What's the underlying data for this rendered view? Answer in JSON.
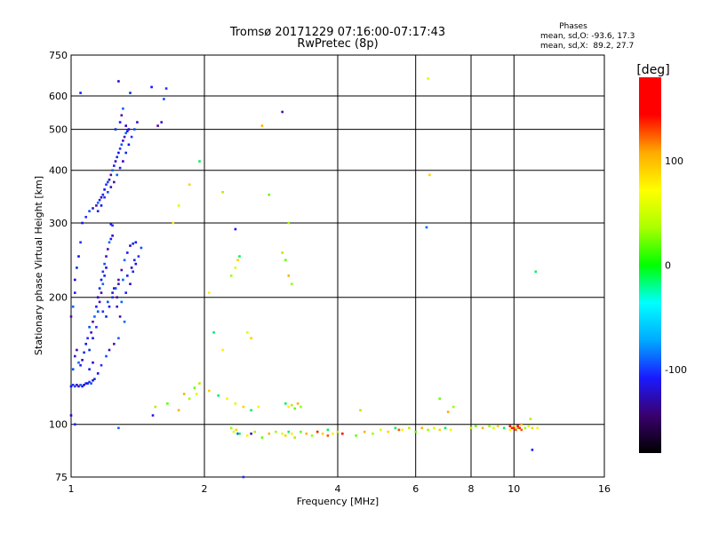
{
  "chart_data": {
    "type": "scatter",
    "title": "Tromsø 20171229 07:16:00-07:17:43",
    "subtitle": "RwPretec (8p)",
    "phases": {
      "heading": "Phases",
      "line_o": "mean, sd,O: -93.6, 17.3",
      "line_x": "mean, sd,X:  89.2, 27.7"
    },
    "xlabel": "Frequency [MHz]",
    "ylabel": "Stationary phase Virtual Height [km]",
    "xscale": "log",
    "yscale": "log",
    "xlim": [
      1,
      16
    ],
    "ylim": [
      75,
      750
    ],
    "xticks": [
      1,
      2,
      4,
      6,
      8,
      10,
      16
    ],
    "yticks": [
      75,
      100,
      200,
      300,
      400,
      500,
      600,
      750
    ],
    "x_gridlines": [
      2,
      4,
      6,
      8,
      10
    ],
    "y_gridlines": [
      100,
      200,
      300,
      400,
      500,
      600
    ],
    "colorbar": {
      "label": "[deg]",
      "range": [
        -180,
        180
      ],
      "ticks": [
        -100,
        0,
        100
      ],
      "colors": [
        "#000000",
        "#3a006e",
        "#1a1aff",
        "#00aaff",
        "#00ffff",
        "#00ff00",
        "#aaff00",
        "#ffff00",
        "#ffaa00",
        "#ff0000",
        "#ff0000"
      ]
    },
    "series": [
      {
        "points": [
          [
            1.0,
            123
          ],
          [
            1.01,
            124
          ],
          [
            1.02,
            123
          ],
          [
            1.03,
            124
          ],
          [
            1.04,
            123
          ],
          [
            1.05,
            124
          ],
          [
            1.06,
            123
          ],
          [
            1.07,
            124
          ],
          [
            1.08,
            125
          ],
          [
            1.09,
            125
          ],
          [
            1.1,
            126
          ],
          [
            1.11,
            125
          ],
          [
            1.12,
            127
          ],
          [
            1.0,
            180
          ],
          [
            1.01,
            190
          ],
          [
            1.02,
            205
          ],
          [
            1.02,
            220
          ],
          [
            1.03,
            235
          ],
          [
            1.04,
            250
          ],
          [
            1.05,
            270
          ],
          [
            1.01,
            135
          ],
          [
            1.02,
            145
          ],
          [
            1.03,
            150
          ],
          [
            1.04,
            140
          ],
          [
            1.05,
            138
          ],
          [
            1.06,
            142
          ],
          [
            1.07,
            148
          ],
          [
            1.08,
            155
          ],
          [
            1.09,
            160
          ],
          [
            1.1,
            170
          ],
          [
            1.11,
            165
          ],
          [
            1.12,
            175
          ],
          [
            1.13,
            180
          ],
          [
            1.14,
            190
          ],
          [
            1.15,
            200
          ],
          [
            1.16,
            210
          ],
          [
            1.17,
            220
          ],
          [
            1.18,
            230
          ],
          [
            1.19,
            240
          ],
          [
            1.2,
            250
          ],
          [
            1.21,
            260
          ],
          [
            1.22,
            270
          ],
          [
            1.23,
            275
          ],
          [
            1.24,
            280
          ],
          [
            1.1,
            150
          ],
          [
            1.12,
            160
          ],
          [
            1.14,
            170
          ],
          [
            1.15,
            185
          ],
          [
            1.16,
            195
          ],
          [
            1.17,
            205
          ],
          [
            1.18,
            215
          ],
          [
            1.19,
            225
          ],
          [
            1.2,
            235
          ],
          [
            1.2,
            180
          ],
          [
            1.22,
            190
          ],
          [
            1.24,
            200
          ],
          [
            1.26,
            210
          ],
          [
            1.28,
            220
          ],
          [
            1.3,
            232
          ],
          [
            1.32,
            245
          ],
          [
            1.34,
            255
          ],
          [
            1.36,
            265
          ],
          [
            1.38,
            268
          ],
          [
            1.4,
            270
          ],
          [
            1.18,
            185
          ],
          [
            1.21,
            195
          ],
          [
            1.24,
            205
          ],
          [
            1.27,
            200
          ],
          [
            1.3,
            195
          ],
          [
            1.33,
            205
          ],
          [
            1.36,
            215
          ],
          [
            1.38,
            230
          ],
          [
            1.4,
            240
          ],
          [
            1.42,
            250
          ],
          [
            1.44,
            262
          ],
          [
            1.25,
            210
          ],
          [
            1.28,
            215
          ],
          [
            1.31,
            220
          ],
          [
            1.34,
            225
          ],
          [
            1.37,
            235
          ],
          [
            1.39,
            245
          ],
          [
            1.06,
            300
          ],
          [
            1.08,
            310
          ],
          [
            1.1,
            320
          ],
          [
            1.12,
            325
          ],
          [
            1.14,
            330
          ],
          [
            1.15,
            335
          ],
          [
            1.16,
            340
          ],
          [
            1.17,
            345
          ],
          [
            1.18,
            350
          ],
          [
            1.19,
            360
          ],
          [
            1.2,
            370
          ],
          [
            1.21,
            375
          ],
          [
            1.22,
            380
          ],
          [
            1.23,
            390
          ],
          [
            1.24,
            400
          ],
          [
            1.25,
            410
          ],
          [
            1.26,
            420
          ],
          [
            1.27,
            430
          ],
          [
            1.28,
            440
          ],
          [
            1.29,
            450
          ],
          [
            1.3,
            460
          ],
          [
            1.31,
            470
          ],
          [
            1.32,
            480
          ],
          [
            1.33,
            490
          ],
          [
            1.34,
            495
          ],
          [
            1.35,
            500
          ],
          [
            1.15,
            320
          ],
          [
            1.17,
            330
          ],
          [
            1.19,
            345
          ],
          [
            1.21,
            355
          ],
          [
            1.23,
            365
          ],
          [
            1.25,
            375
          ],
          [
            1.27,
            390
          ],
          [
            1.29,
            405
          ],
          [
            1.31,
            420
          ],
          [
            1.33,
            440
          ],
          [
            1.35,
            460
          ],
          [
            1.37,
            480
          ],
          [
            1.39,
            500
          ],
          [
            1.41,
            520
          ],
          [
            1.3,
            540
          ],
          [
            1.31,
            560
          ],
          [
            1.29,
            520
          ],
          [
            1.33,
            510
          ],
          [
            1.26,
            500
          ],
          [
            1.23,
            298
          ],
          [
            1.24,
            296
          ],
          [
            1.26,
            210
          ],
          [
            1.27,
            190
          ],
          [
            1.29,
            180
          ],
          [
            1.32,
            175
          ],
          [
            1.1,
            135
          ],
          [
            1.12,
            140
          ],
          [
            1.13,
            128
          ],
          [
            1.15,
            132
          ],
          [
            1.17,
            138
          ],
          [
            1.2,
            145
          ],
          [
            1.22,
            150
          ],
          [
            1.25,
            155
          ],
          [
            1.28,
            160
          ],
          [
            1.05,
            610
          ],
          [
            1.28,
            650
          ],
          [
            1.36,
            610
          ],
          [
            1.52,
            630
          ],
          [
            1.64,
            625
          ],
          [
            1.62,
            590
          ],
          [
            1.6,
            520
          ],
          [
            1.57,
            510
          ],
          [
            1.28,
            98
          ],
          [
            1.53,
            105
          ],
          [
            1.0,
            105
          ],
          [
            1.02,
            100
          ],
          [
            2.35,
            290
          ],
          [
            2.45,
            75
          ],
          [
            2.38,
            95
          ],
          [
            2.55,
            95
          ],
          [
            3.0,
            550
          ],
          [
            6.35,
            293
          ],
          [
            11.0,
            87
          ]
        ]
      },
      {
        "points": [
          [
            2.3,
            98
          ],
          [
            2.33,
            96
          ],
          [
            2.36,
            97
          ],
          [
            2.4,
            95
          ],
          [
            2.5,
            94
          ],
          [
            2.6,
            96
          ],
          [
            2.7,
            93
          ],
          [
            2.8,
            95
          ],
          [
            2.9,
            96
          ],
          [
            3.0,
            95
          ],
          [
            3.05,
            94
          ],
          [
            3.1,
            96
          ],
          [
            3.15,
            95
          ],
          [
            3.2,
            93
          ],
          [
            3.3,
            96
          ],
          [
            3.4,
            95
          ],
          [
            3.5,
            94
          ],
          [
            3.6,
            96
          ],
          [
            3.7,
            95
          ],
          [
            3.8,
            97
          ],
          [
            3.9,
            95
          ],
          [
            4.0,
            96
          ],
          [
            4.4,
            94
          ],
          [
            4.6,
            96
          ],
          [
            4.8,
            95
          ],
          [
            5.0,
            97
          ],
          [
            5.2,
            96
          ],
          [
            5.4,
            98
          ],
          [
            5.6,
            97
          ],
          [
            5.8,
            98
          ],
          [
            6.0,
            96
          ],
          [
            6.2,
            98
          ],
          [
            6.4,
            97
          ],
          [
            6.6,
            98
          ],
          [
            6.8,
            97
          ],
          [
            7.0,
            98
          ],
          [
            7.2,
            97
          ],
          [
            8.0,
            98
          ],
          [
            8.2,
            99
          ],
          [
            8.5,
            98
          ],
          [
            8.8,
            99
          ],
          [
            9.0,
            98
          ],
          [
            9.2,
            99
          ],
          [
            9.5,
            98
          ],
          [
            9.8,
            97
          ],
          [
            10.0,
            99
          ],
          [
            10.2,
            98
          ],
          [
            10.4,
            100
          ],
          [
            10.6,
            98
          ],
          [
            10.8,
            99
          ],
          [
            11.0,
            98
          ],
          [
            3.05,
            112
          ],
          [
            3.1,
            110
          ],
          [
            3.15,
            111
          ],
          [
            3.2,
            109
          ],
          [
            3.25,
            112
          ],
          [
            3.3,
            110
          ],
          [
            2.35,
            112
          ],
          [
            2.45,
            110
          ],
          [
            2.55,
            108
          ],
          [
            2.65,
            110
          ],
          [
            1.55,
            110
          ],
          [
            1.65,
            112
          ],
          [
            1.75,
            108
          ],
          [
            1.85,
            115
          ],
          [
            1.92,
            118
          ],
          [
            2.05,
            120
          ],
          [
            2.15,
            117
          ],
          [
            2.25,
            115
          ],
          [
            4.5,
            108
          ],
          [
            6.8,
            115
          ],
          [
            7.1,
            107
          ],
          [
            7.3,
            110
          ],
          [
            2.5,
            165
          ],
          [
            2.55,
            160
          ],
          [
            2.1,
            165
          ],
          [
            2.2,
            150
          ],
          [
            1.95,
            125
          ],
          [
            1.9,
            122
          ],
          [
            1.8,
            118
          ],
          [
            2.3,
            225
          ],
          [
            2.35,
            235
          ],
          [
            2.38,
            245
          ],
          [
            2.4,
            250
          ],
          [
            2.05,
            205
          ],
          [
            3.0,
            255
          ],
          [
            3.05,
            245
          ],
          [
            3.1,
            225
          ],
          [
            3.15,
            215
          ],
          [
            1.75,
            330
          ],
          [
            1.85,
            370
          ],
          [
            1.95,
            420
          ],
          [
            1.7,
            300
          ],
          [
            2.2,
            355
          ],
          [
            2.8,
            350
          ],
          [
            2.7,
            510
          ],
          [
            3.1,
            300
          ],
          [
            6.4,
            660
          ],
          [
            6.45,
            390
          ],
          [
            11.2,
            230
          ],
          [
            11.3,
            98
          ],
          [
            10.9,
            103
          ]
        ]
      },
      {
        "points": [
          [
            10.0,
            98
          ],
          [
            10.1,
            97
          ],
          [
            10.2,
            99
          ],
          [
            10.3,
            98
          ],
          [
            10.4,
            97
          ],
          [
            9.8,
            99
          ],
          [
            9.9,
            98
          ],
          [
            3.8,
            94
          ],
          [
            4.1,
            95
          ],
          [
            3.6,
            96
          ],
          [
            5.5,
            97
          ]
        ]
      }
    ]
  }
}
